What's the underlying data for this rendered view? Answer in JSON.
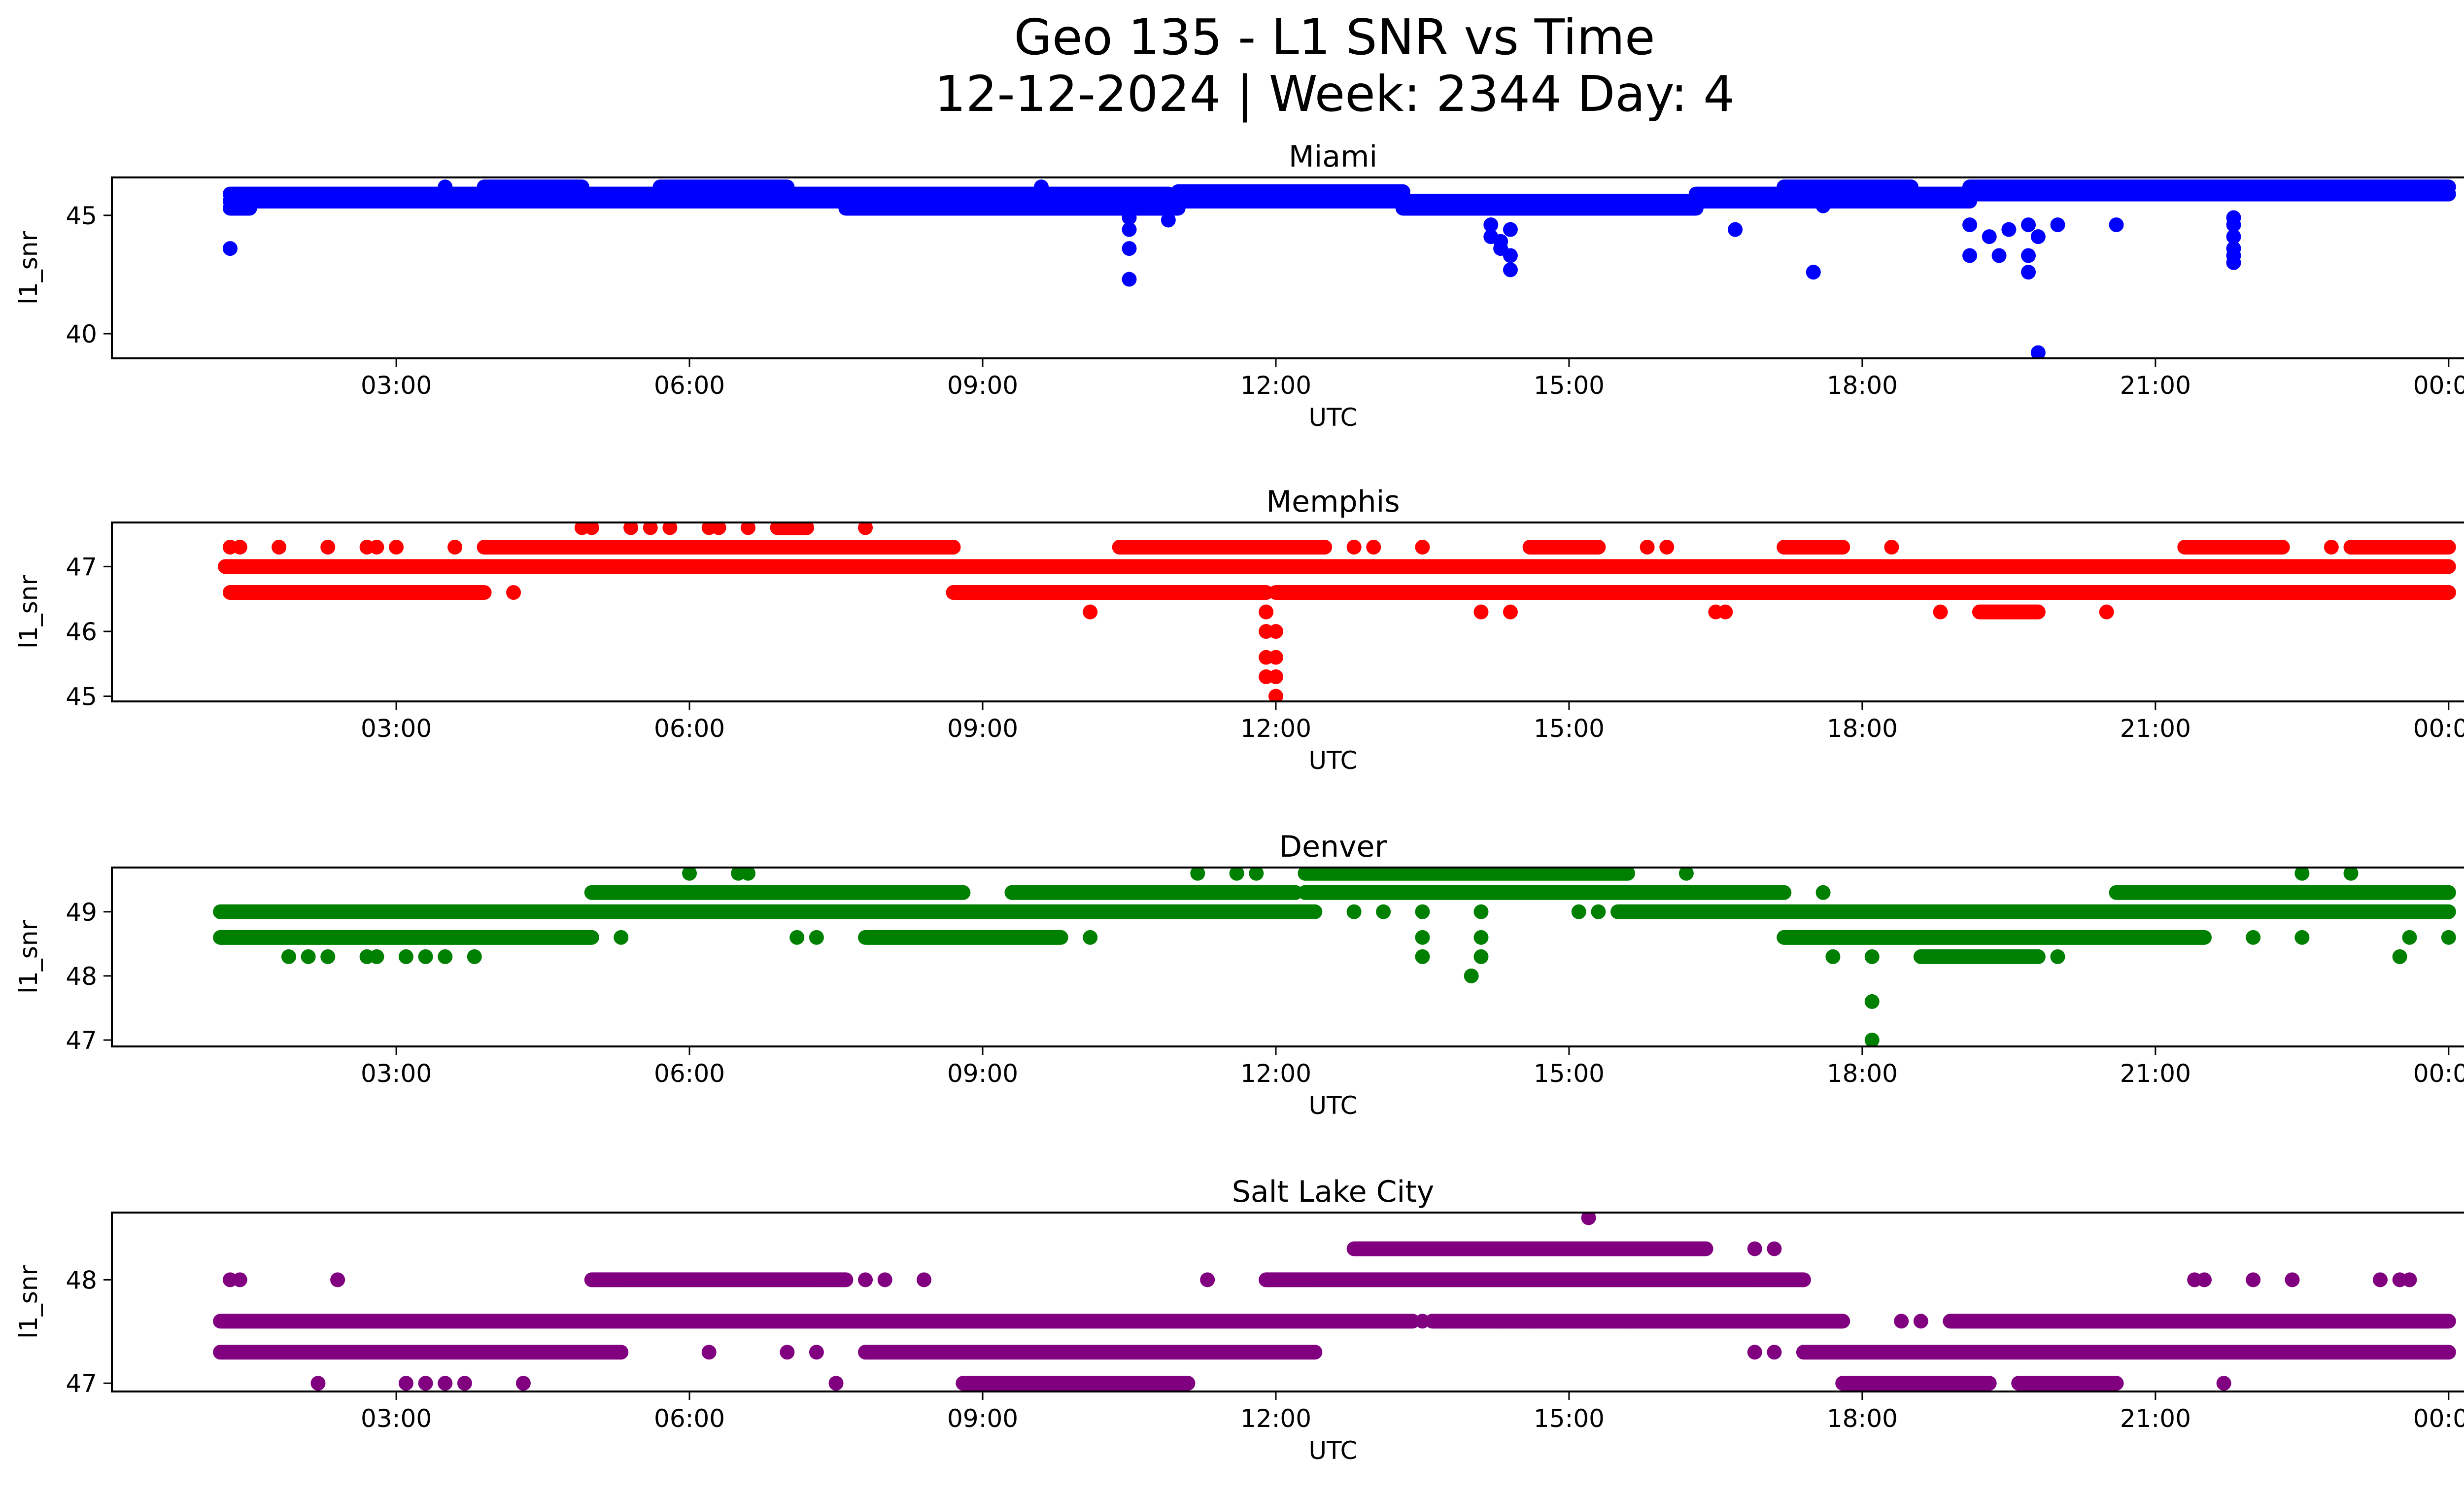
{
  "figure": {
    "title_line1": "Geo 135 - L1 SNR vs Time",
    "title_line2": "12-12-2024 | Week: 2344 Day: 4"
  },
  "chart_data": [
    {
      "type": "scatter",
      "title": "Miami",
      "xlabel": "UTC",
      "ylabel": "l1_snr",
      "color": "#0000ff",
      "xlim_hours": [
        0.09,
        25.08
      ],
      "ylim": [
        38.96,
        46.6
      ],
      "xticks": [
        {
          "value": 3,
          "label": "03:00"
        },
        {
          "value": 6,
          "label": "06:00"
        },
        {
          "value": 9,
          "label": "09:00"
        },
        {
          "value": 12,
          "label": "12:00"
        },
        {
          "value": 15,
          "label": "15:00"
        },
        {
          "value": 18,
          "label": "18:00"
        },
        {
          "value": 21,
          "label": "21:00"
        },
        {
          "value": 24,
          "label": "00:00"
        }
      ],
      "yticks": [
        {
          "value": 40,
          "label": "40"
        },
        {
          "value": 45,
          "label": "45"
        }
      ],
      "bands": [
        [
          1.3,
          10.9,
          45.9
        ],
        [
          1.3,
          7.6,
          45.6
        ],
        [
          7.6,
          11.0,
          45.3
        ],
        [
          11.0,
          13.3,
          46.0
        ],
        [
          11.0,
          13.3,
          45.6
        ],
        [
          13.3,
          16.3,
          45.6
        ],
        [
          13.3,
          16.3,
          45.3
        ],
        [
          16.3,
          24.0,
          45.9
        ],
        [
          16.3,
          19.1,
          45.6
        ],
        [
          19.1,
          24.0,
          46.2
        ],
        [
          1.3,
          1.5,
          45.3
        ],
        [
          3.9,
          4.9,
          46.2
        ],
        [
          5.7,
          7.0,
          46.2
        ],
        [
          8.0,
          9.3,
          45.6
        ],
        [
          17.2,
          18.5,
          46.2
        ]
      ],
      "points": [
        [
          1.3,
          43.6
        ],
        [
          10.5,
          44.9
        ],
        [
          10.5,
          44.4
        ],
        [
          10.5,
          43.6
        ],
        [
          10.5,
          42.3
        ],
        [
          10.9,
          44.8
        ],
        [
          14.2,
          44.6
        ],
        [
          14.2,
          44.1
        ],
        [
          14.3,
          43.9
        ],
        [
          14.3,
          43.6
        ],
        [
          14.4,
          43.3
        ],
        [
          14.4,
          42.7
        ],
        [
          14.4,
          44.4
        ],
        [
          16.7,
          44.4
        ],
        [
          17.5,
          42.6
        ],
        [
          19.1,
          44.6
        ],
        [
          19.1,
          43.3
        ],
        [
          19.3,
          44.1
        ],
        [
          19.4,
          43.3
        ],
        [
          19.5,
          44.4
        ],
        [
          19.7,
          44.6
        ],
        [
          19.7,
          43.3
        ],
        [
          19.7,
          42.6
        ],
        [
          19.8,
          44.1
        ],
        [
          19.8,
          39.2
        ],
        [
          20.0,
          44.6
        ],
        [
          20.6,
          44.6
        ],
        [
          21.8,
          44.9
        ],
        [
          21.8,
          44.6
        ],
        [
          21.8,
          44.1
        ],
        [
          21.8,
          43.6
        ],
        [
          21.8,
          43.3
        ],
        [
          21.8,
          43.0
        ],
        [
          3.5,
          46.2
        ],
        [
          9.6,
          46.2
        ],
        [
          17.6,
          45.4
        ]
      ]
    },
    {
      "type": "scatter",
      "title": "Memphis",
      "xlabel": "UTC",
      "ylabel": "l1_snr",
      "color": "#ff0000",
      "xlim_hours": [
        0.09,
        25.08
      ],
      "ylim": [
        44.92,
        47.68
      ],
      "xticks": [
        {
          "value": 3,
          "label": "03:00"
        },
        {
          "value": 6,
          "label": "06:00"
        },
        {
          "value": 9,
          "label": "09:00"
        },
        {
          "value": 12,
          "label": "12:00"
        },
        {
          "value": 15,
          "label": "15:00"
        },
        {
          "value": 18,
          "label": "18:00"
        },
        {
          "value": 21,
          "label": "21:00"
        },
        {
          "value": 24,
          "label": "00:00"
        }
      ],
      "yticks": [
        {
          "value": 45,
          "label": "45"
        },
        {
          "value": 46,
          "label": "46"
        },
        {
          "value": 47,
          "label": "47"
        }
      ],
      "bands": [
        [
          1.25,
          24.0,
          47.0
        ],
        [
          1.3,
          3.9,
          46.6
        ],
        [
          3.9,
          8.7,
          47.3
        ],
        [
          8.7,
          11.9,
          46.6
        ],
        [
          10.4,
          12.5,
          47.3
        ],
        [
          12.0,
          24.0,
          46.6
        ],
        [
          14.6,
          15.3,
          47.3
        ],
        [
          17.2,
          17.8,
          47.3
        ],
        [
          19.2,
          19.8,
          46.3
        ],
        [
          21.3,
          22.3,
          47.3
        ],
        [
          23.0,
          24.0,
          47.3
        ],
        [
          6.9,
          7.2,
          47.6
        ]
      ],
      "points": [
        [
          1.3,
          47.3
        ],
        [
          1.4,
          47.3
        ],
        [
          1.8,
          47.3
        ],
        [
          2.3,
          47.3
        ],
        [
          2.7,
          47.3
        ],
        [
          2.8,
          47.3
        ],
        [
          3.0,
          47.3
        ],
        [
          3.6,
          47.3
        ],
        [
          4.2,
          46.6
        ],
        [
          4.9,
          47.6
        ],
        [
          5.0,
          47.6
        ],
        [
          5.4,
          47.6
        ],
        [
          5.6,
          47.6
        ],
        [
          5.8,
          47.6
        ],
        [
          6.2,
          47.6
        ],
        [
          6.3,
          47.6
        ],
        [
          6.6,
          47.6
        ],
        [
          7.8,
          47.6
        ],
        [
          10.1,
          46.3
        ],
        [
          11.9,
          46.3
        ],
        [
          11.9,
          46.0
        ],
        [
          11.9,
          45.6
        ],
        [
          11.9,
          45.3
        ],
        [
          12.0,
          45.0
        ],
        [
          12.0,
          46.0
        ],
        [
          12.0,
          45.6
        ],
        [
          12.0,
          45.3
        ],
        [
          12.8,
          47.3
        ],
        [
          13.0,
          47.3
        ],
        [
          13.5,
          47.3
        ],
        [
          14.1,
          46.3
        ],
        [
          14.4,
          46.3
        ],
        [
          15.8,
          47.3
        ],
        [
          16.0,
          47.3
        ],
        [
          16.5,
          46.3
        ],
        [
          16.6,
          46.3
        ],
        [
          18.3,
          47.3
        ],
        [
          18.8,
          46.3
        ],
        [
          20.5,
          46.3
        ],
        [
          22.8,
          47.3
        ],
        [
          24.0,
          46.6
        ]
      ]
    },
    {
      "type": "scatter",
      "title": "Denver",
      "xlabel": "UTC",
      "ylabel": "l1_snr",
      "color": "#008000",
      "xlim_hours": [
        0.09,
        25.08
      ],
      "ylim": [
        46.9,
        49.69
      ],
      "xticks": [
        {
          "value": 3,
          "label": "03:00"
        },
        {
          "value": 6,
          "label": "06:00"
        },
        {
          "value": 9,
          "label": "09:00"
        },
        {
          "value": 12,
          "label": "12:00"
        },
        {
          "value": 15,
          "label": "15:00"
        },
        {
          "value": 18,
          "label": "18:00"
        },
        {
          "value": 21,
          "label": "21:00"
        },
        {
          "value": 24,
          "label": "00:00"
        }
      ],
      "yticks": [
        {
          "value": 47,
          "label": "47"
        },
        {
          "value": 48,
          "label": "48"
        },
        {
          "value": 49,
          "label": "49"
        }
      ],
      "bands": [
        [
          1.2,
          12.4,
          49.0
        ],
        [
          1.2,
          5.0,
          48.6
        ],
        [
          5.0,
          8.8,
          49.3
        ],
        [
          7.8,
          9.8,
          48.6
        ],
        [
          9.3,
          12.2,
          49.3
        ],
        [
          12.3,
          15.6,
          49.6
        ],
        [
          12.3,
          17.2,
          49.3
        ],
        [
          15.5,
          24.0,
          49.0
        ],
        [
          17.2,
          21.5,
          48.6
        ],
        [
          18.6,
          19.8,
          48.3
        ],
        [
          20.6,
          24.0,
          49.3
        ]
      ],
      "points": [
        [
          1.9,
          48.3
        ],
        [
          2.1,
          48.3
        ],
        [
          2.3,
          48.3
        ],
        [
          2.7,
          48.3
        ],
        [
          2.8,
          48.3
        ],
        [
          3.1,
          48.3
        ],
        [
          3.3,
          48.3
        ],
        [
          3.5,
          48.3
        ],
        [
          3.8,
          48.3
        ],
        [
          5.3,
          48.6
        ],
        [
          6.0,
          49.6
        ],
        [
          6.5,
          49.6
        ],
        [
          6.6,
          49.6
        ],
        [
          7.1,
          48.6
        ],
        [
          7.3,
          48.6
        ],
        [
          8.6,
          49.3
        ],
        [
          10.1,
          48.6
        ],
        [
          11.2,
          49.6
        ],
        [
          11.6,
          49.6
        ],
        [
          11.8,
          49.6
        ],
        [
          12.8,
          49.0
        ],
        [
          13.1,
          49.0
        ],
        [
          13.5,
          49.0
        ],
        [
          13.5,
          48.6
        ],
        [
          13.5,
          48.3
        ],
        [
          14.1,
          49.0
        ],
        [
          14.1,
          48.6
        ],
        [
          14.1,
          48.3
        ],
        [
          14.0,
          48.0
        ],
        [
          15.1,
          49.0
        ],
        [
          15.3,
          49.0
        ],
        [
          16.2,
          49.6
        ],
        [
          17.6,
          49.3
        ],
        [
          17.7,
          48.3
        ],
        [
          18.1,
          48.3
        ],
        [
          18.1,
          47.6
        ],
        [
          18.1,
          47.0
        ],
        [
          20.0,
          48.3
        ],
        [
          22.0,
          48.6
        ],
        [
          22.5,
          48.6
        ],
        [
          22.5,
          49.6
        ],
        [
          23.0,
          49.6
        ],
        [
          23.5,
          48.3
        ],
        [
          23.6,
          48.6
        ],
        [
          24.0,
          48.6
        ]
      ]
    },
    {
      "type": "scatter",
      "title": "Salt Lake City",
      "xlabel": "UTC",
      "ylabel": "l1_snr",
      "color": "#800080",
      "xlim_hours": [
        0.09,
        25.08
      ],
      "ylim": [
        46.92,
        48.65
      ],
      "xticks": [
        {
          "value": 3,
          "label": "03:00"
        },
        {
          "value": 6,
          "label": "06:00"
        },
        {
          "value": 9,
          "label": "09:00"
        },
        {
          "value": 12,
          "label": "12:00"
        },
        {
          "value": 15,
          "label": "15:00"
        },
        {
          "value": 18,
          "label": "18:00"
        },
        {
          "value": 21,
          "label": "21:00"
        },
        {
          "value": 24,
          "label": "00:00"
        }
      ],
      "yticks": [
        {
          "value": 47,
          "label": "47"
        },
        {
          "value": 48,
          "label": "48"
        }
      ],
      "bands": [
        [
          1.2,
          13.4,
          47.6
        ],
        [
          1.2,
          5.3,
          47.3
        ],
        [
          5.0,
          7.6,
          48.0
        ],
        [
          7.8,
          12.4,
          47.3
        ],
        [
          8.8,
          11.1,
          47.0
        ],
        [
          11.9,
          17.4,
          48.0
        ],
        [
          12.8,
          16.4,
          48.3
        ],
        [
          13.6,
          17.8,
          47.6
        ],
        [
          17.4,
          24.0,
          47.3
        ],
        [
          17.8,
          19.3,
          47.0
        ],
        [
          18.9,
          24.0,
          47.6
        ],
        [
          19.6,
          20.6,
          47.0
        ]
      ],
      "points": [
        [
          1.3,
          48.0
        ],
        [
          1.4,
          48.0
        ],
        [
          2.4,
          48.0
        ],
        [
          2.2,
          47.0
        ],
        [
          3.1,
          47.0
        ],
        [
          3.3,
          47.0
        ],
        [
          3.5,
          47.0
        ],
        [
          3.7,
          47.0
        ],
        [
          4.3,
          47.0
        ],
        [
          6.2,
          47.3
        ],
        [
          7.0,
          47.3
        ],
        [
          7.3,
          47.3
        ],
        [
          7.5,
          47.0
        ],
        [
          7.8,
          48.0
        ],
        [
          8.0,
          48.0
        ],
        [
          8.4,
          48.0
        ],
        [
          11.3,
          48.0
        ],
        [
          13.5,
          47.6
        ],
        [
          13.7,
          47.6
        ],
        [
          14.3,
          47.6
        ],
        [
          14.6,
          47.6
        ],
        [
          15.2,
          48.6
        ],
        [
          15.4,
          47.6
        ],
        [
          15.6,
          47.6
        ],
        [
          16.9,
          47.3
        ],
        [
          17.1,
          47.3
        ],
        [
          16.9,
          48.3
        ],
        [
          17.1,
          48.3
        ],
        [
          18.4,
          47.6
        ],
        [
          18.6,
          47.6
        ],
        [
          19.0,
          47.6
        ],
        [
          21.7,
          47.0
        ],
        [
          21.4,
          48.0
        ],
        [
          21.5,
          48.0
        ],
        [
          22.0,
          48.0
        ],
        [
          22.4,
          48.0
        ],
        [
          23.3,
          48.0
        ],
        [
          23.5,
          48.0
        ],
        [
          23.6,
          48.0
        ]
      ]
    }
  ]
}
